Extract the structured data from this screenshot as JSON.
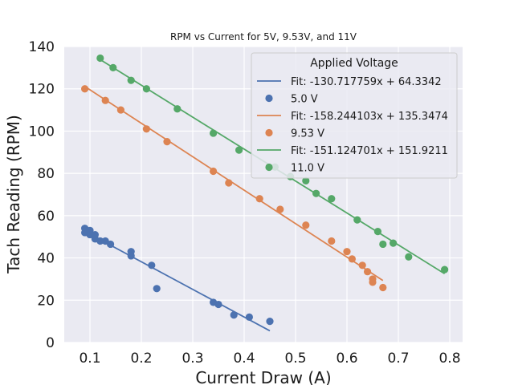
{
  "chart_data": {
    "type": "scatter",
    "title": "RPM vs Current for 5V, 9.53V, and 11V",
    "xlabel": "Current Draw (A)",
    "ylabel": "Tach Reading (RPM)",
    "xlim": [
      0.05,
      0.825
    ],
    "ylim": [
      0,
      140
    ],
    "xticks": [
      0.1,
      0.2,
      0.3,
      0.4,
      0.5,
      0.6,
      0.7,
      0.8
    ],
    "xtick_labels": [
      "0.1",
      "0.2",
      "0.3",
      "0.4",
      "0.5",
      "0.6",
      "0.7",
      "0.8"
    ],
    "yticks": [
      0,
      20,
      40,
      60,
      80,
      100,
      120,
      140
    ],
    "ytick_labels": [
      "0",
      "20",
      "40",
      "60",
      "80",
      "100",
      "120",
      "140"
    ],
    "grid": true,
    "legend": {
      "title": "Applied Voltage",
      "placement": "top-right",
      "entries": [
        {
          "label": "Fit: -130.717759x + 64.3342",
          "kind": "line",
          "color": "#4c72b0"
        },
        {
          "label": "5.0 V",
          "kind": "point",
          "color": "#4c72b0"
        },
        {
          "label": "Fit: -158.244103x + 135.3474",
          "kind": "line",
          "color": "#dd8452"
        },
        {
          "label": "9.53 V",
          "kind": "point",
          "color": "#dd8452"
        },
        {
          "label": "Fit: -151.124701x + 151.9211",
          "kind": "line",
          "color": "#55a868"
        },
        {
          "label": "11.0 V",
          "kind": "point",
          "color": "#55a868"
        }
      ]
    },
    "series": [
      {
        "name": "5.0 V",
        "color": "#4c72b0",
        "fit": {
          "slope": -130.717759,
          "intercept": 64.3342,
          "x_range": [
            0.09,
            0.45
          ]
        },
        "points": [
          [
            0.09,
            54
          ],
          [
            0.09,
            52
          ],
          [
            0.1,
            53
          ],
          [
            0.1,
            51
          ],
          [
            0.11,
            51
          ],
          [
            0.11,
            49
          ],
          [
            0.12,
            48
          ],
          [
            0.13,
            48
          ],
          [
            0.14,
            46.5
          ],
          [
            0.18,
            43
          ],
          [
            0.18,
            41
          ],
          [
            0.22,
            36.5
          ],
          [
            0.23,
            25.5
          ],
          [
            0.34,
            19
          ],
          [
            0.35,
            18
          ],
          [
            0.38,
            13
          ],
          [
            0.41,
            12
          ],
          [
            0.45,
            10
          ]
        ]
      },
      {
        "name": "9.53 V",
        "color": "#dd8452",
        "fit": {
          "slope": -158.244103,
          "intercept": 135.3474,
          "x_range": [
            0.09,
            0.67
          ]
        },
        "points": [
          [
            0.09,
            120
          ],
          [
            0.13,
            114.5
          ],
          [
            0.16,
            110
          ],
          [
            0.21,
            101
          ],
          [
            0.25,
            95
          ],
          [
            0.34,
            81
          ],
          [
            0.37,
            75.5
          ],
          [
            0.43,
            68
          ],
          [
            0.47,
            63
          ],
          [
            0.52,
            55.5
          ],
          [
            0.57,
            48
          ],
          [
            0.6,
            43
          ],
          [
            0.61,
            39.5
          ],
          [
            0.63,
            36.5
          ],
          [
            0.64,
            33.5
          ],
          [
            0.65,
            30
          ],
          [
            0.65,
            28.5
          ],
          [
            0.67,
            26
          ]
        ]
      },
      {
        "name": "11.0 V",
        "color": "#55a868",
        "fit": {
          "slope": -151.124701,
          "intercept": 151.9211,
          "x_range": [
            0.12,
            0.79
          ]
        },
        "points": [
          [
            0.12,
            134.5
          ],
          [
            0.145,
            130
          ],
          [
            0.18,
            124
          ],
          [
            0.21,
            120
          ],
          [
            0.27,
            110.5
          ],
          [
            0.34,
            99
          ],
          [
            0.39,
            91
          ],
          [
            0.46,
            83
          ],
          [
            0.49,
            78.5
          ],
          [
            0.52,
            76.5
          ],
          [
            0.54,
            70.5
          ],
          [
            0.57,
            68
          ],
          [
            0.62,
            58
          ],
          [
            0.66,
            52.5
          ],
          [
            0.67,
            46.5
          ],
          [
            0.69,
            47
          ],
          [
            0.72,
            40.5
          ],
          [
            0.79,
            34.5
          ]
        ]
      }
    ]
  }
}
